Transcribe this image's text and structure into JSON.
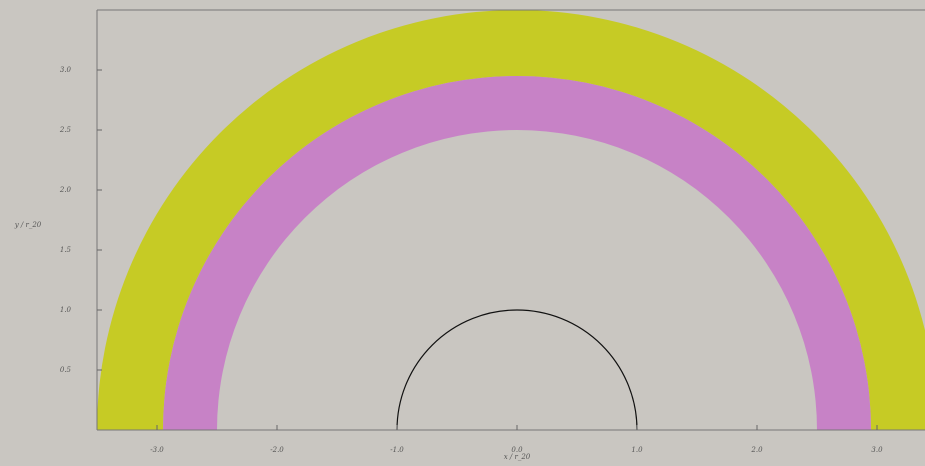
{
  "chart_data": {
    "type": "rings",
    "xlabel": "x / r_20",
    "ylabel": "y / r_20",
    "xlim": [
      -3.5,
      3.4
    ],
    "ylim": [
      0,
      3.5
    ],
    "xticks": [
      {
        "value": -3,
        "label": "-3.0"
      },
      {
        "value": -2,
        "label": "-2.0"
      },
      {
        "value": -1,
        "label": "-1.0"
      },
      {
        "value": 0,
        "label": "0.0"
      },
      {
        "value": 1,
        "label": "1.0"
      },
      {
        "value": 2,
        "label": "2.0"
      },
      {
        "value": 3,
        "label": "3.0"
      }
    ],
    "yticks": [
      {
        "value": 0.5,
        "label": "0.5"
      },
      {
        "value": 1,
        "label": "1.0"
      },
      {
        "value": 1.5,
        "label": "1.5"
      },
      {
        "value": 2,
        "label": "2.0"
      },
      {
        "value": 2.5,
        "label": "2.5"
      },
      {
        "value": 3,
        "label": "3.0"
      }
    ],
    "rings": [
      {
        "color": "#c6cb1c",
        "inner": 2.95,
        "outer": 3.5
      },
      {
        "color": "#c77ec6",
        "inner": 2.5,
        "outer": 2.95
      }
    ],
    "circle": {
      "color": "#111111",
      "radius": 1
    }
  }
}
